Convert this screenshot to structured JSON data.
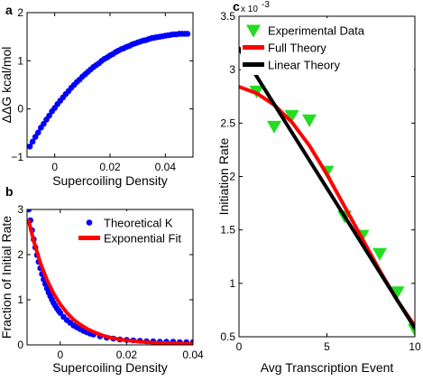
{
  "chart_data": [
    {
      "panel": "a",
      "type": "scatter",
      "xlabel": "Supercoiling Density",
      "ylabel": "ΔΔG kcal/mol",
      "xlim": [
        -0.01,
        0.05
      ],
      "ylim": [
        -1,
        2
      ],
      "xticks": [
        0,
        0.02,
        0.04
      ],
      "xtick_labels": [
        "0",
        "0.02",
        "0.04"
      ],
      "yticks": [
        -1,
        0,
        1,
        2
      ],
      "ytick_labels": [
        "−1",
        "0",
        "1",
        "2"
      ],
      "series": [
        {
          "color": "#0000ff",
          "x": [
            -0.009,
            -0.008,
            -0.007,
            -0.006,
            -0.005,
            -0.004,
            -0.003,
            -0.002,
            -0.001,
            0,
            0.001,
            0.002,
            0.003,
            0.004,
            0.005,
            0.006,
            0.007,
            0.008,
            0.009,
            0.01,
            0.011,
            0.012,
            0.013,
            0.014,
            0.015,
            0.016,
            0.017,
            0.018,
            0.019,
            0.02,
            0.021,
            0.022,
            0.023,
            0.024,
            0.025,
            0.026,
            0.027,
            0.028,
            0.029,
            0.03,
            0.031,
            0.032,
            0.033,
            0.034,
            0.035,
            0.036,
            0.037,
            0.038,
            0.039,
            0.04,
            0.041,
            0.042,
            0.043,
            0.044,
            0.045,
            0.046,
            0.047,
            0.048
          ],
          "y": [
            -0.78,
            -0.68,
            -0.58,
            -0.49,
            -0.39,
            -0.31,
            -0.22,
            -0.14,
            -0.05,
            0.02,
            0.1,
            0.17,
            0.24,
            0.31,
            0.37,
            0.44,
            0.5,
            0.56,
            0.61,
            0.67,
            0.72,
            0.77,
            0.82,
            0.87,
            0.91,
            0.95,
            1.0,
            1.04,
            1.07,
            1.11,
            1.14,
            1.18,
            1.21,
            1.24,
            1.26,
            1.29,
            1.31,
            1.34,
            1.36,
            1.38,
            1.4,
            1.42,
            1.43,
            1.45,
            1.47,
            1.48,
            1.49,
            1.5,
            1.51,
            1.52,
            1.53,
            1.54,
            1.55,
            1.55,
            1.56,
            1.56,
            1.56,
            1.56
          ]
        }
      ]
    },
    {
      "panel": "b",
      "type": "line",
      "xlabel": "Supercoiling Density",
      "ylabel": "Fraction of Initial Rate",
      "xlim": [
        -0.01,
        0.04
      ],
      "ylim": [
        0,
        3
      ],
      "xticks": [
        0,
        0.02,
        0.04
      ],
      "xtick_labels": [
        "0",
        "0.02",
        "0.04"
      ],
      "yticks": [
        0,
        1,
        2,
        3
      ],
      "ytick_labels": [
        "0",
        "1",
        "2",
        "3"
      ],
      "legend_position": "top-right",
      "series": [
        {
          "name": "Theoretical K",
          "style": "dots",
          "color": "#0000ff",
          "x": [
            -0.0095,
            -0.009,
            -0.0085,
            -0.008,
            -0.0075,
            -0.007,
            -0.0065,
            -0.006,
            -0.0055,
            -0.005,
            -0.0045,
            -0.004,
            -0.0035,
            -0.003,
            -0.0025,
            -0.002,
            -0.0015,
            -0.001,
            -0.0005,
            0,
            0.001,
            0.002,
            0.003,
            0.004,
            0.005,
            0.006,
            0.007,
            0.008,
            0.009,
            0.01,
            0.012,
            0.014,
            0.016,
            0.018,
            0.02,
            0.022,
            0.024,
            0.026,
            0.028,
            0.03,
            0.032,
            0.034,
            0.036,
            0.038,
            0.04
          ],
          "y": [
            3.0,
            2.76,
            2.54,
            2.34,
            2.16,
            1.99,
            1.84,
            1.7,
            1.57,
            1.45,
            1.35,
            1.25,
            1.16,
            1.08,
            1.0,
            0.93,
            0.87,
            0.81,
            0.76,
            0.71,
            0.62,
            0.55,
            0.49,
            0.43,
            0.39,
            0.35,
            0.31,
            0.28,
            0.25,
            0.23,
            0.19,
            0.16,
            0.14,
            0.12,
            0.11,
            0.1,
            0.09,
            0.08,
            0.08,
            0.07,
            0.07,
            0.07,
            0.06,
            0.06,
            0.06
          ]
        },
        {
          "name": "Exponential Fit",
          "style": "line",
          "color": "#ff0000",
          "x": [
            -0.0095,
            -0.008,
            -0.006,
            -0.004,
            -0.002,
            0,
            0.002,
            0.004,
            0.006,
            0.008,
            0.01,
            0.012,
            0.014,
            0.016,
            0.018,
            0.02,
            0.024,
            0.028,
            0.032,
            0.036,
            0.04
          ],
          "y": [
            2.75,
            2.3,
            1.82,
            1.44,
            1.14,
            0.9,
            0.71,
            0.56,
            0.45,
            0.36,
            0.29,
            0.23,
            0.18,
            0.15,
            0.12,
            0.1,
            0.07,
            0.05,
            0.04,
            0.03,
            0.02
          ]
        }
      ]
    },
    {
      "panel": "c",
      "type": "line",
      "xlabel": "Avg Transcription Event",
      "ylabel": "Initiation Rate",
      "y_multiplier": "x 10",
      "y_multiplier_exp": "-3",
      "xlim": [
        0,
        10
      ],
      "ylim": [
        0.5,
        3.5
      ],
      "xticks": [
        0,
        5,
        10
      ],
      "xtick_labels": [
        "0",
        "5",
        "10"
      ],
      "yticks": [
        0.5,
        1,
        1.5,
        2,
        2.5,
        3,
        3.5
      ],
      "ytick_labels": [
        "0.5",
        "1",
        "1.5",
        "2",
        "2.5",
        "3",
        "3.5"
      ],
      "legend_position": "top-right",
      "series": [
        {
          "name": "Experimental Data",
          "style": "triangles",
          "color": "#22dd22",
          "x": [
            1,
            2,
            3,
            4,
            5,
            6,
            7,
            8,
            9,
            10
          ],
          "y": [
            2.8,
            2.47,
            2.57,
            2.53,
            2.05,
            1.63,
            1.45,
            1.28,
            0.92,
            0.57
          ]
        },
        {
          "name": "Full Theory",
          "style": "line",
          "color": "#ff0000",
          "x": [
            0,
            1,
            2,
            3,
            4,
            5,
            6,
            7,
            8,
            9,
            10
          ],
          "y": [
            2.84,
            2.78,
            2.67,
            2.51,
            2.29,
            2.02,
            1.72,
            1.42,
            1.12,
            0.84,
            0.6
          ]
        },
        {
          "name": "Linear Theory",
          "style": "line",
          "color": "#000000",
          "x": [
            0,
            10
          ],
          "y": [
            3.2,
            0.58
          ]
        }
      ]
    }
  ]
}
